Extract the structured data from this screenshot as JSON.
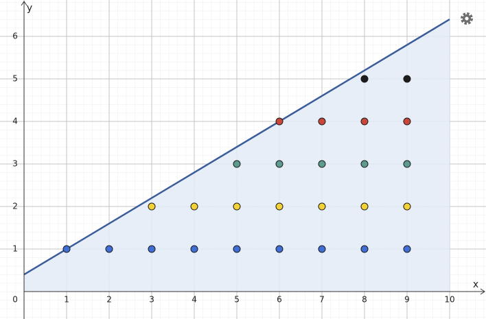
{
  "chart_data": {
    "type": "scatter",
    "x_label": "x",
    "y_label": "y",
    "xlim": [
      -0.565,
      10.855
    ],
    "ylim": [
      -0.645,
      6.855
    ],
    "xticks": [
      0,
      1,
      2,
      3,
      4,
      5,
      6,
      7,
      8,
      9,
      10
    ],
    "yticks": [
      1,
      2,
      3,
      4,
      5,
      6
    ],
    "grid": true,
    "line": {
      "color": "#3a5d9a",
      "fill": "#e3ebf7",
      "x": [
        0,
        10
      ],
      "values": [
        0.4,
        6.4
      ]
    },
    "series": [
      {
        "color": "#3f6fd6",
        "x": [
          1,
          2,
          3,
          4,
          5,
          6,
          7,
          8,
          9
        ],
        "values": [
          1,
          1,
          1,
          1,
          1,
          1,
          1,
          1,
          1
        ]
      },
      {
        "color": "#f5d234",
        "x": [
          3,
          4,
          5,
          6,
          7,
          8,
          9
        ],
        "values": [
          2,
          2,
          2,
          2,
          2,
          2,
          2
        ]
      },
      {
        "color": "#5c9b8e",
        "x": [
          5,
          6,
          7,
          8,
          9
        ],
        "values": [
          3,
          3,
          3,
          3,
          3
        ]
      },
      {
        "color": "#c8473a",
        "x": [
          6,
          7,
          8,
          9
        ],
        "values": [
          4,
          4,
          4,
          4
        ]
      },
      {
        "color": "#1c1c1c",
        "x": [
          8,
          9
        ],
        "values": [
          5,
          5
        ]
      }
    ]
  }
}
